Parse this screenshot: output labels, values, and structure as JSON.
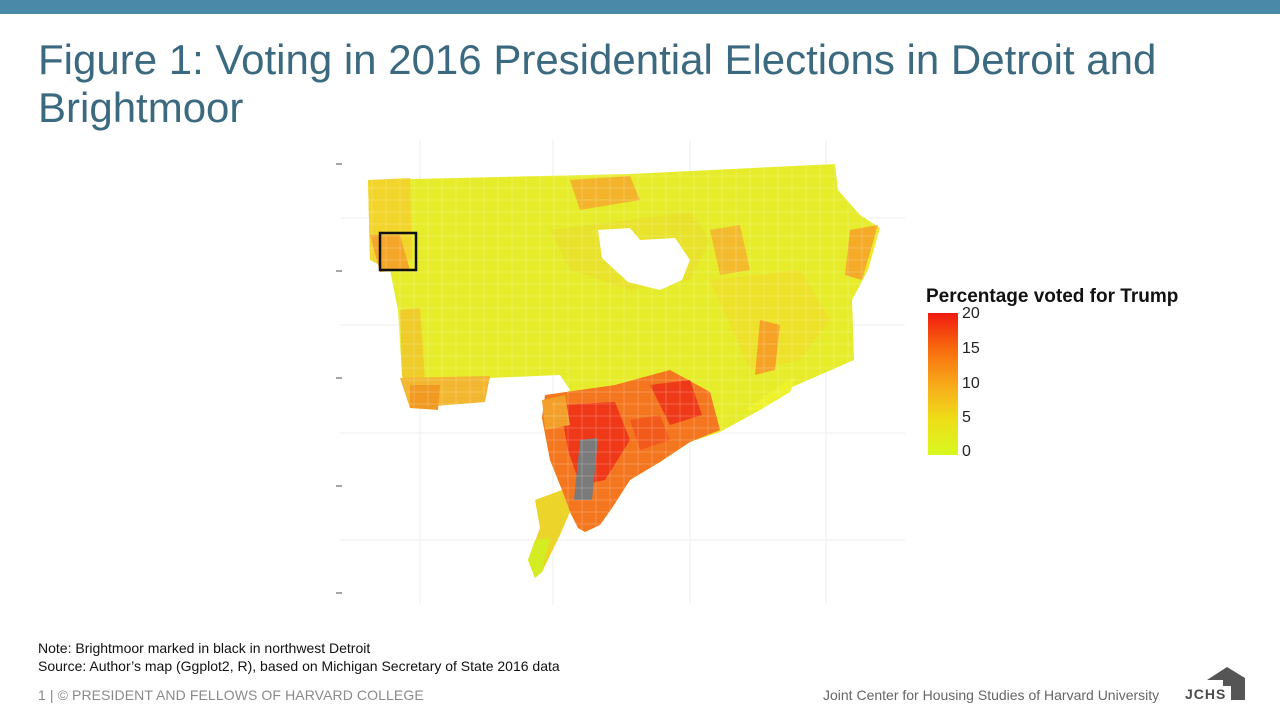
{
  "title": "Figure 1: Voting in 2016 Presidential Elections in Detroit and Brightmoor",
  "legend": {
    "title": "Percentage voted for Trump",
    "ticks": [
      "20",
      "15",
      "10",
      "5",
      "0"
    ],
    "gradient_colors": [
      "#f01a10",
      "#f86a0e",
      "#f8a81a",
      "#eede18",
      "#d8f820"
    ]
  },
  "notes": {
    "note": "Note: Brightmoor marked in black in northwest Detroit",
    "source": "Source: Author’s map (Ggplot2, R), based on Michigan Secretary of State 2016 data"
  },
  "footer": {
    "left": "1 | © PRESIDENT AND FELLOWS OF HARVARD COLLEGE",
    "right": "Joint Center for Housing Studies of Harvard University",
    "logo_text": "JCHS"
  }
}
